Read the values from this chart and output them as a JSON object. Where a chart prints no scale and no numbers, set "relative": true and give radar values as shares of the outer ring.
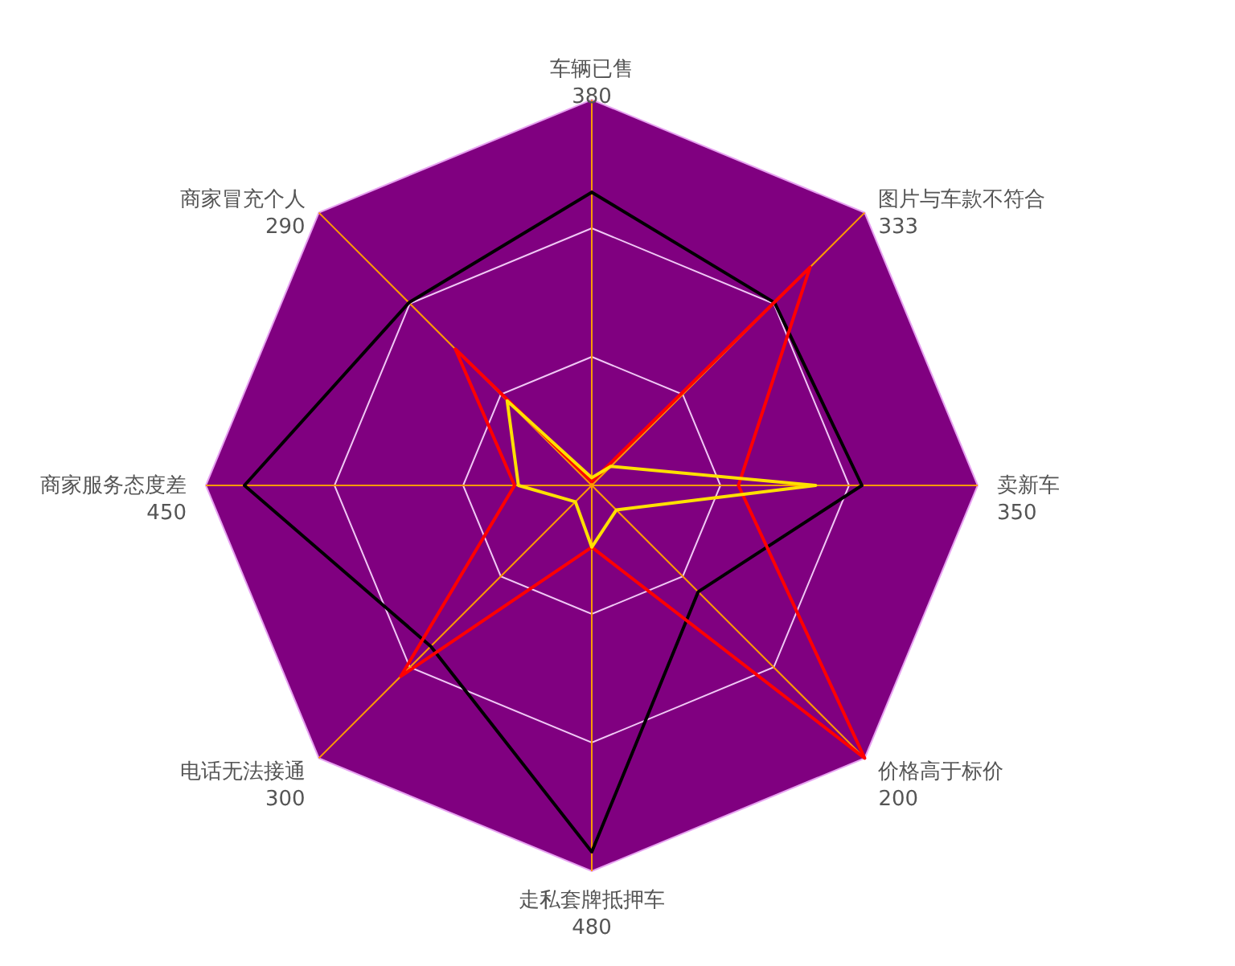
{
  "chart_data": {
    "type": "radar",
    "relative": true,
    "grid": true,
    "categories": [
      "车辆已售\n380",
      "图片与车款不符合\n333",
      "卖新车\n350",
      "价格高于标价\n200",
      "走私套牌抵押车\n480",
      "电话无法接通\n300",
      "商家服务态度差\n450",
      "商家冒充个人\n290"
    ],
    "series": [
      {
        "color": "#000000",
        "values": [
          0.76,
          0.67,
          0.7,
          0.39,
          0.95,
          0.59,
          0.9,
          0.67
        ]
      },
      {
        "color": "#ff0000",
        "values": [
          0.01,
          0.8,
          0.38,
          1.0,
          0.16,
          0.7,
          0.2,
          0.5
        ]
      },
      {
        "color": "#ffe000",
        "values": [
          0.02,
          0.07,
          0.58,
          0.09,
          0.16,
          0.06,
          0.19,
          0.31
        ]
      }
    ]
  }
}
